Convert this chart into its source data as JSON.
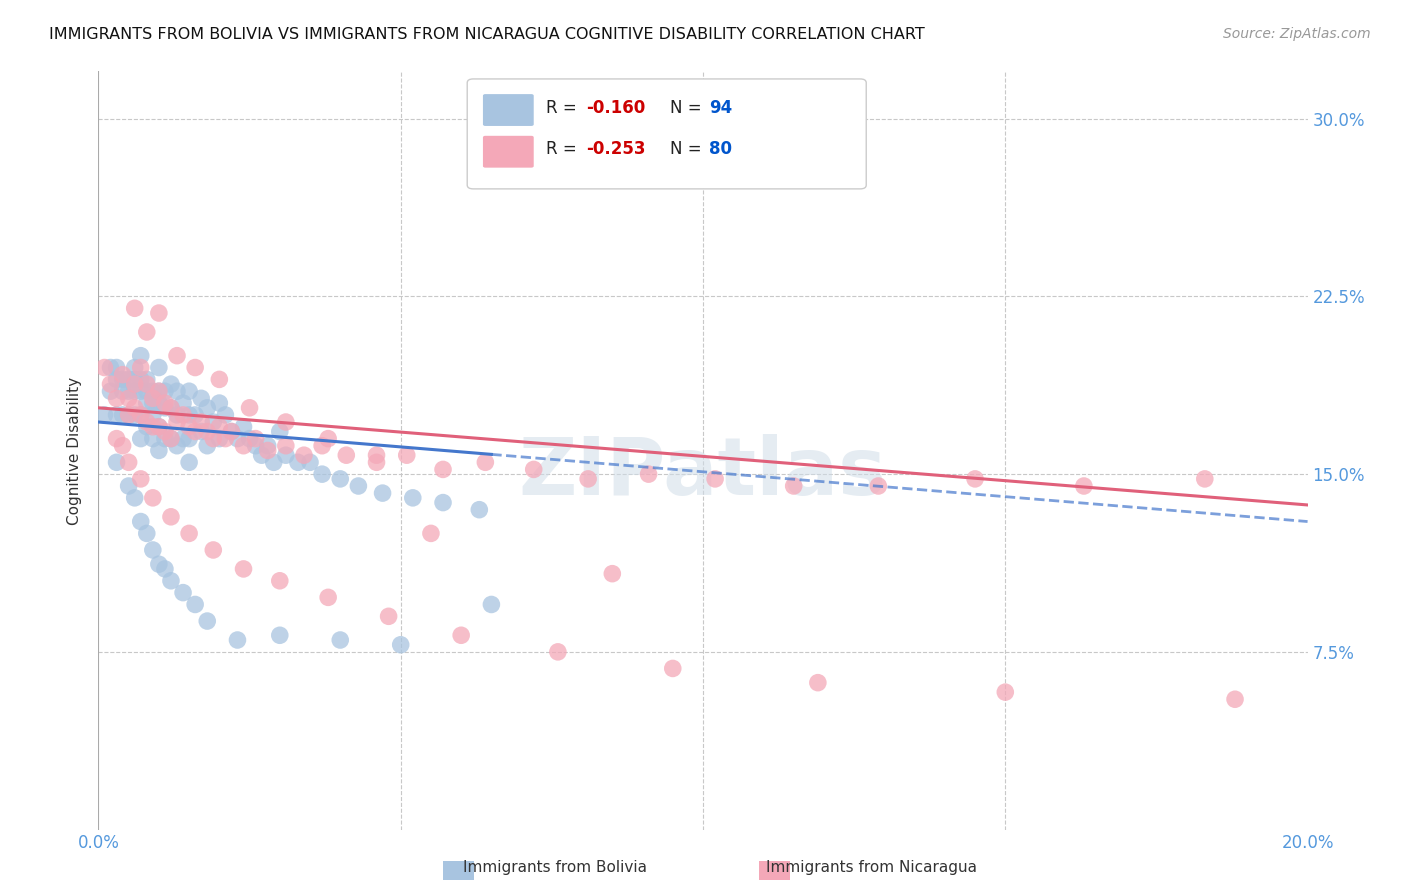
{
  "title": "IMMIGRANTS FROM BOLIVIA VS IMMIGRANTS FROM NICARAGUA COGNITIVE DISABILITY CORRELATION CHART",
  "source": "Source: ZipAtlas.com",
  "ylabel": "Cognitive Disability",
  "xlim": [
    0.0,
    0.2
  ],
  "ylim": [
    0.0,
    0.32
  ],
  "bolivia_color": "#a8c4e0",
  "nicaragua_color": "#f4a8b8",
  "bolivia_line_color": "#4477cc",
  "nicaragua_line_color": "#e0607a",
  "bolivia_R": -0.16,
  "bolivia_N": 94,
  "nicaragua_R": -0.253,
  "nicaragua_N": 80,
  "legend_R_color": "#cc0000",
  "legend_N_color": "#0055cc",
  "watermark": "ZIPatlas",
  "background_color": "#ffffff",
  "grid_color": "#c8c8c8",
  "bolivia_scatter_x": [
    0.001,
    0.002,
    0.002,
    0.003,
    0.003,
    0.003,
    0.004,
    0.004,
    0.004,
    0.005,
    0.005,
    0.005,
    0.006,
    0.006,
    0.006,
    0.006,
    0.007,
    0.007,
    0.007,
    0.007,
    0.007,
    0.008,
    0.008,
    0.008,
    0.008,
    0.009,
    0.009,
    0.009,
    0.009,
    0.01,
    0.01,
    0.01,
    0.01,
    0.01,
    0.011,
    0.011,
    0.011,
    0.012,
    0.012,
    0.012,
    0.013,
    0.013,
    0.013,
    0.014,
    0.014,
    0.015,
    0.015,
    0.015,
    0.015,
    0.016,
    0.017,
    0.017,
    0.018,
    0.018,
    0.019,
    0.02,
    0.02,
    0.021,
    0.022,
    0.023,
    0.024,
    0.025,
    0.026,
    0.027,
    0.028,
    0.029,
    0.03,
    0.031,
    0.033,
    0.035,
    0.037,
    0.04,
    0.043,
    0.047,
    0.052,
    0.057,
    0.063,
    0.003,
    0.005,
    0.006,
    0.007,
    0.008,
    0.009,
    0.01,
    0.011,
    0.012,
    0.014,
    0.016,
    0.018,
    0.023,
    0.03,
    0.04,
    0.05,
    0.065
  ],
  "bolivia_scatter_y": [
    0.175,
    0.195,
    0.185,
    0.195,
    0.19,
    0.175,
    0.19,
    0.185,
    0.175,
    0.19,
    0.185,
    0.175,
    0.195,
    0.19,
    0.185,
    0.175,
    0.2,
    0.19,
    0.185,
    0.175,
    0.165,
    0.19,
    0.185,
    0.18,
    0.17,
    0.185,
    0.18,
    0.175,
    0.165,
    0.195,
    0.185,
    0.18,
    0.17,
    0.16,
    0.185,
    0.178,
    0.165,
    0.188,
    0.178,
    0.165,
    0.185,
    0.175,
    0.162,
    0.18,
    0.165,
    0.185,
    0.175,
    0.165,
    0.155,
    0.175,
    0.182,
    0.168,
    0.178,
    0.162,
    0.172,
    0.18,
    0.165,
    0.175,
    0.168,
    0.165,
    0.17,
    0.165,
    0.162,
    0.158,
    0.162,
    0.155,
    0.168,
    0.158,
    0.155,
    0.155,
    0.15,
    0.148,
    0.145,
    0.142,
    0.14,
    0.138,
    0.135,
    0.155,
    0.145,
    0.14,
    0.13,
    0.125,
    0.118,
    0.112,
    0.11,
    0.105,
    0.1,
    0.095,
    0.088,
    0.08,
    0.082,
    0.08,
    0.078,
    0.095
  ],
  "nicaragua_scatter_x": [
    0.001,
    0.002,
    0.003,
    0.004,
    0.005,
    0.005,
    0.006,
    0.006,
    0.007,
    0.007,
    0.008,
    0.008,
    0.009,
    0.009,
    0.01,
    0.01,
    0.011,
    0.011,
    0.012,
    0.012,
    0.013,
    0.014,
    0.015,
    0.016,
    0.017,
    0.018,
    0.019,
    0.02,
    0.021,
    0.022,
    0.024,
    0.026,
    0.028,
    0.031,
    0.034,
    0.037,
    0.041,
    0.046,
    0.051,
    0.057,
    0.064,
    0.072,
    0.081,
    0.091,
    0.102,
    0.115,
    0.129,
    0.145,
    0.163,
    0.183,
    0.006,
    0.008,
    0.01,
    0.013,
    0.016,
    0.02,
    0.025,
    0.031,
    0.038,
    0.046,
    0.003,
    0.004,
    0.005,
    0.007,
    0.009,
    0.012,
    0.015,
    0.019,
    0.024,
    0.03,
    0.038,
    0.048,
    0.06,
    0.076,
    0.095,
    0.119,
    0.15,
    0.188,
    0.055,
    0.085
  ],
  "nicaragua_scatter_y": [
    0.195,
    0.188,
    0.182,
    0.192,
    0.182,
    0.175,
    0.188,
    0.178,
    0.195,
    0.175,
    0.188,
    0.172,
    0.182,
    0.17,
    0.185,
    0.17,
    0.18,
    0.168,
    0.178,
    0.165,
    0.172,
    0.175,
    0.17,
    0.168,
    0.172,
    0.168,
    0.165,
    0.17,
    0.165,
    0.168,
    0.162,
    0.165,
    0.16,
    0.162,
    0.158,
    0.162,
    0.158,
    0.155,
    0.158,
    0.152,
    0.155,
    0.152,
    0.148,
    0.15,
    0.148,
    0.145,
    0.145,
    0.148,
    0.145,
    0.148,
    0.22,
    0.21,
    0.218,
    0.2,
    0.195,
    0.19,
    0.178,
    0.172,
    0.165,
    0.158,
    0.165,
    0.162,
    0.155,
    0.148,
    0.14,
    0.132,
    0.125,
    0.118,
    0.11,
    0.105,
    0.098,
    0.09,
    0.082,
    0.075,
    0.068,
    0.062,
    0.058,
    0.055,
    0.125,
    0.108
  ],
  "bolivia_trend_x0": 0.0,
  "bolivia_trend_x1": 0.2,
  "bolivia_trend_y0": 0.172,
  "bolivia_trend_y1": 0.13,
  "nicaragua_trend_x0": 0.0,
  "nicaragua_trend_x1": 0.2,
  "nicaragua_trend_y0": 0.178,
  "nicaragua_trend_y1": 0.137
}
